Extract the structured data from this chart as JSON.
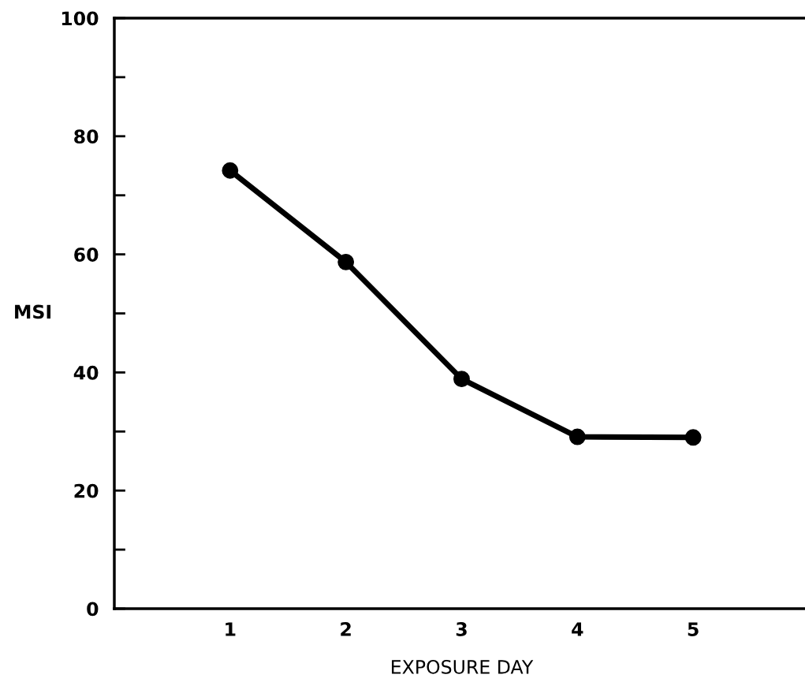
{
  "chart_data": {
    "type": "line",
    "xlabel": "EXPOSURE DAY",
    "ylabel": "MSI",
    "x": [
      1,
      2,
      3,
      4,
      5
    ],
    "series": [
      {
        "color": "#000000",
        "values": [
          74.2,
          58.7,
          38.9,
          29.1,
          29.0
        ]
      }
    ],
    "xlim": [
      0,
      6
    ],
    "xticks": [
      1,
      2,
      3,
      4,
      5
    ],
    "ylim": [
      0,
      100
    ],
    "yticks": [
      0,
      {
        "value": 10,
        "label": null
      },
      20,
      {
        "value": 30,
        "label": null
      },
      40,
      {
        "value": 50,
        "label": null
      },
      60,
      {
        "value": 70,
        "label": null
      },
      80,
      {
        "value": 90,
        "label": null
      },
      100
    ],
    "marker": "circle",
    "line_style": "solid",
    "grid": false,
    "legend": false
  }
}
